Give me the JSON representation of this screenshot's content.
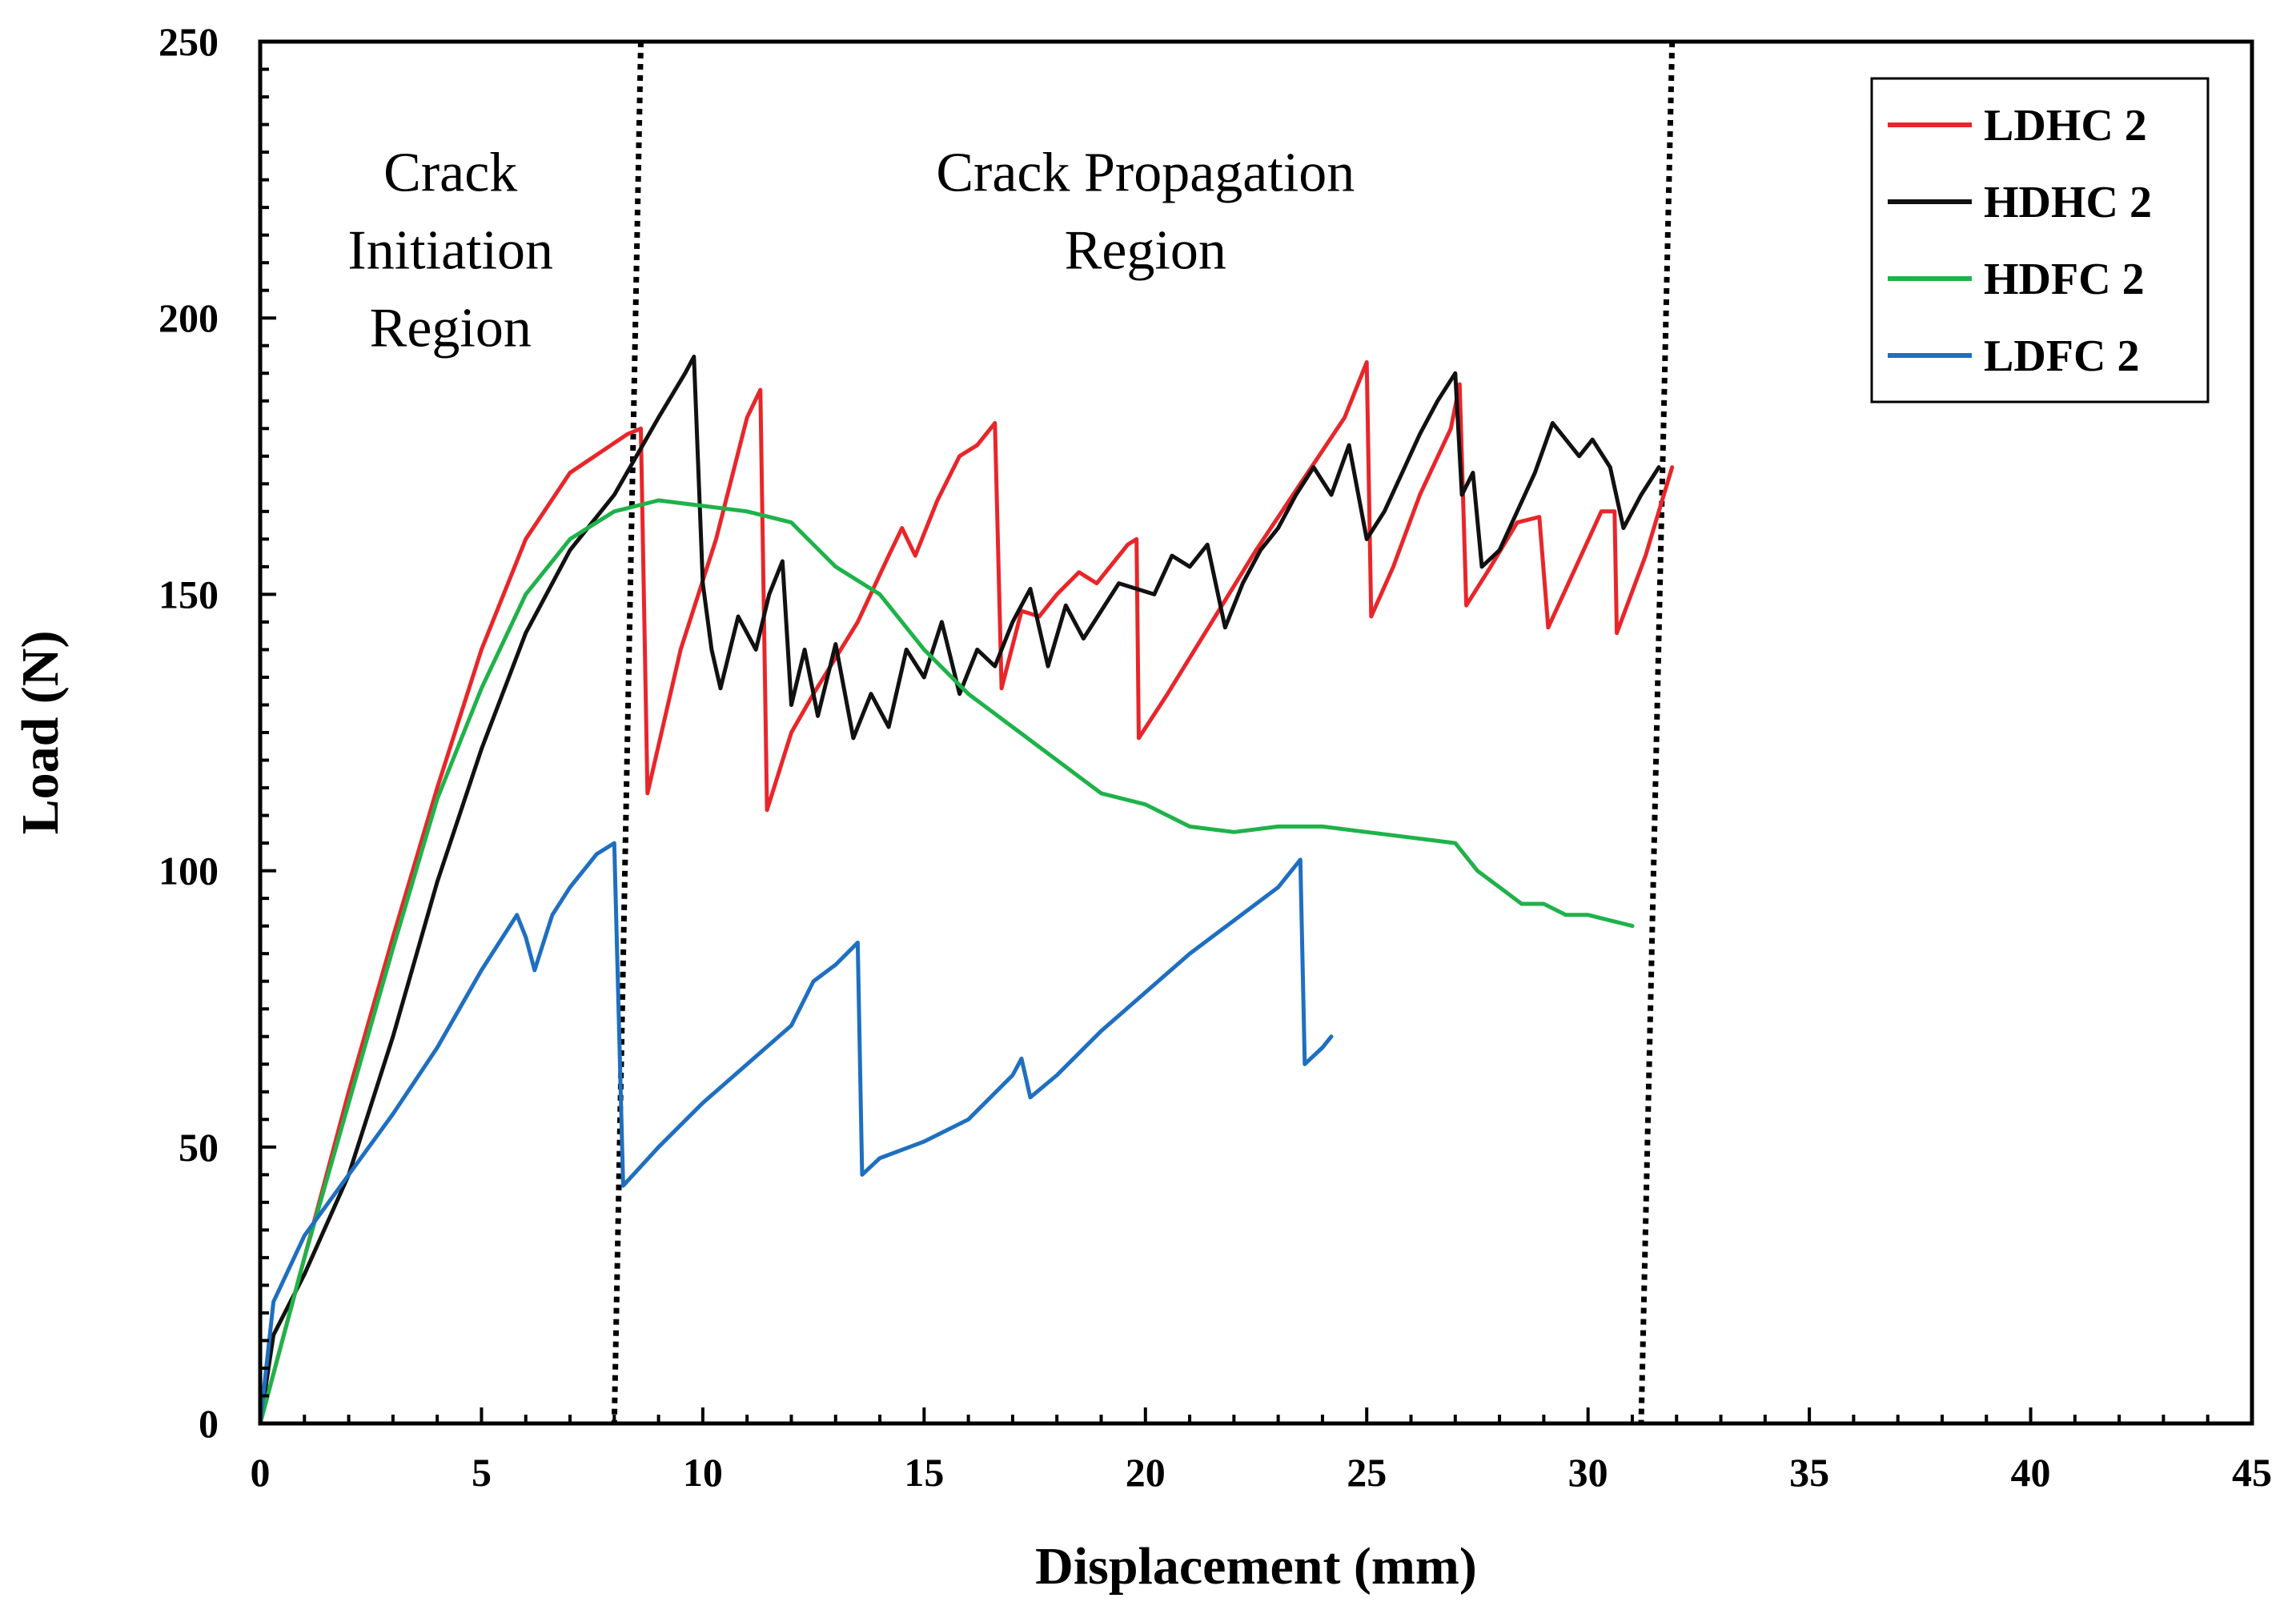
{
  "chart_data": {
    "type": "line",
    "title": "",
    "xlabel": "Displacement (mm)",
    "ylabel": "Load (N)",
    "xlim": [
      0,
      45
    ],
    "ylim": [
      0,
      250
    ],
    "x_ticks": [
      "0",
      "5",
      "10",
      "15",
      "20",
      "25",
      "30",
      "35",
      "40",
      "45"
    ],
    "y_ticks": [
      "0",
      "50",
      "100",
      "150",
      "200",
      "250"
    ],
    "grid": false,
    "legend_position": "top-right",
    "region_boundaries": [
      {
        "name": "crack-initiation-end",
        "top_x": 8.6,
        "bottom_x": 8.0
      },
      {
        "name": "crack-propagation-end",
        "top_x": 31.9,
        "bottom_x": 31.2
      }
    ],
    "region_labels": [
      {
        "name": "crack-initiation",
        "lines": [
          "Crack",
          "Initiation",
          "Region"
        ],
        "x": 4.3,
        "y": 223
      },
      {
        "name": "crack-propagation",
        "lines": [
          "Crack Propagation",
          "Region"
        ],
        "x": 20.0,
        "y": 223
      }
    ],
    "series": [
      {
        "name": "LDHC 2",
        "color": "#e8262a",
        "points": [
          [
            0,
            0
          ],
          [
            1,
            30
          ],
          [
            2,
            60
          ],
          [
            3,
            88
          ],
          [
            4,
            115
          ],
          [
            5,
            140
          ],
          [
            6,
            160
          ],
          [
            7,
            172
          ],
          [
            8.3,
            179
          ],
          [
            8.6,
            180
          ],
          [
            8.75,
            114
          ],
          [
            9.5,
            140
          ],
          [
            10.3,
            160
          ],
          [
            11,
            182
          ],
          [
            11.3,
            187
          ],
          [
            11.45,
            111
          ],
          [
            12,
            125
          ],
          [
            12.5,
            132
          ],
          [
            13.5,
            145
          ],
          [
            14.2,
            157
          ],
          [
            14.5,
            162
          ],
          [
            14.8,
            157
          ],
          [
            15.3,
            167
          ],
          [
            15.8,
            175
          ],
          [
            16.2,
            177
          ],
          [
            16.6,
            181
          ],
          [
            16.75,
            133
          ],
          [
            17.2,
            147
          ],
          [
            17.6,
            146
          ],
          [
            18,
            150
          ],
          [
            18.5,
            154
          ],
          [
            18.9,
            152
          ],
          [
            19.6,
            159
          ],
          [
            19.8,
            160
          ],
          [
            19.85,
            124
          ],
          [
            20.5,
            132
          ],
          [
            21.5,
            145
          ],
          [
            22.5,
            158
          ],
          [
            23.5,
            170
          ],
          [
            24.5,
            182
          ],
          [
            25,
            192
          ],
          [
            25.1,
            146
          ],
          [
            25.6,
            155
          ],
          [
            26.2,
            168
          ],
          [
            26.9,
            180
          ],
          [
            27.1,
            188
          ],
          [
            27.25,
            148
          ],
          [
            27.8,
            155
          ],
          [
            28.4,
            163
          ],
          [
            28.9,
            164
          ],
          [
            29.1,
            144
          ],
          [
            29.9,
            158
          ],
          [
            30.3,
            165
          ],
          [
            30.6,
            165
          ],
          [
            30.65,
            143
          ],
          [
            31.3,
            157
          ],
          [
            31.9,
            173
          ]
        ]
      },
      {
        "name": "HDHC 2",
        "color": "#111111",
        "points": [
          [
            0,
            0
          ],
          [
            0.3,
            16
          ],
          [
            1,
            27
          ],
          [
            2,
            45
          ],
          [
            3,
            70
          ],
          [
            4,
            98
          ],
          [
            5,
            122
          ],
          [
            6,
            143
          ],
          [
            7,
            158
          ],
          [
            8,
            168
          ],
          [
            9,
            182
          ],
          [
            9.6,
            190
          ],
          [
            9.8,
            193
          ],
          [
            10,
            152
          ],
          [
            10.2,
            140
          ],
          [
            10.4,
            133
          ],
          [
            10.8,
            146
          ],
          [
            11.2,
            140
          ],
          [
            11.5,
            150
          ],
          [
            11.8,
            156
          ],
          [
            12,
            130
          ],
          [
            12.3,
            140
          ],
          [
            12.6,
            128
          ],
          [
            13,
            141
          ],
          [
            13.4,
            124
          ],
          [
            13.8,
            132
          ],
          [
            14.2,
            126
          ],
          [
            14.6,
            140
          ],
          [
            15,
            135
          ],
          [
            15.4,
            145
          ],
          [
            15.8,
            132
          ],
          [
            16.2,
            140
          ],
          [
            16.6,
            137
          ],
          [
            17,
            145
          ],
          [
            17.4,
            151
          ],
          [
            17.8,
            137
          ],
          [
            18.2,
            148
          ],
          [
            18.6,
            142
          ],
          [
            19,
            147
          ],
          [
            19.4,
            152
          ],
          [
            19.8,
            151
          ],
          [
            20.2,
            150
          ],
          [
            20.6,
            157
          ],
          [
            21,
            155
          ],
          [
            21.4,
            159
          ],
          [
            21.8,
            144
          ],
          [
            22.2,
            152
          ],
          [
            22.6,
            158
          ],
          [
            23,
            162
          ],
          [
            23.4,
            168
          ],
          [
            23.8,
            173
          ],
          [
            24.2,
            168
          ],
          [
            24.6,
            177
          ],
          [
            25,
            160
          ],
          [
            25.4,
            165
          ],
          [
            25.8,
            172
          ],
          [
            26.2,
            179
          ],
          [
            26.6,
            185
          ],
          [
            27,
            190
          ],
          [
            27.15,
            168
          ],
          [
            27.4,
            172
          ],
          [
            27.6,
            155
          ],
          [
            28,
            158
          ],
          [
            28.4,
            165
          ],
          [
            28.8,
            172
          ],
          [
            29.2,
            181
          ],
          [
            29.5,
            178
          ],
          [
            29.8,
            175
          ],
          [
            30.1,
            178
          ],
          [
            30.5,
            173
          ],
          [
            30.8,
            162
          ],
          [
            31.2,
            168
          ],
          [
            31.6,
            173
          ]
        ]
      },
      {
        "name": "HDFC 2",
        "color": "#1fb24a",
        "points": [
          [
            0,
            0
          ],
          [
            1,
            30
          ],
          [
            2,
            58
          ],
          [
            3,
            86
          ],
          [
            4,
            113
          ],
          [
            5,
            133
          ],
          [
            6,
            150
          ],
          [
            7,
            160
          ],
          [
            8,
            165
          ],
          [
            9,
            167
          ],
          [
            10,
            166
          ],
          [
            11,
            165
          ],
          [
            12,
            163
          ],
          [
            13,
            155
          ],
          [
            14,
            150
          ],
          [
            15,
            140
          ],
          [
            16,
            132
          ],
          [
            17,
            126
          ],
          [
            18,
            120
          ],
          [
            19,
            114
          ],
          [
            20,
            112
          ],
          [
            21,
            108
          ],
          [
            22,
            107
          ],
          [
            23,
            108
          ],
          [
            24,
            108
          ],
          [
            25,
            107
          ],
          [
            26,
            106
          ],
          [
            27,
            105
          ],
          [
            27.5,
            100
          ],
          [
            28,
            97
          ],
          [
            28.5,
            94
          ],
          [
            29,
            94
          ],
          [
            29.5,
            92
          ],
          [
            30,
            92
          ],
          [
            30.5,
            91
          ],
          [
            31,
            90
          ]
        ]
      },
      {
        "name": "LDFC 2",
        "color": "#1f6fc0",
        "points": [
          [
            0,
            0
          ],
          [
            0.3,
            22
          ],
          [
            1,
            34
          ],
          [
            2,
            45
          ],
          [
            3,
            56
          ],
          [
            4,
            68
          ],
          [
            5,
            82
          ],
          [
            5.8,
            92
          ],
          [
            6,
            88
          ],
          [
            6.2,
            82
          ],
          [
            6.6,
            92
          ],
          [
            7,
            97
          ],
          [
            7.6,
            103
          ],
          [
            8,
            105
          ],
          [
            8.2,
            43
          ],
          [
            9,
            50
          ],
          [
            10,
            58
          ],
          [
            11,
            65
          ],
          [
            12,
            72
          ],
          [
            12.5,
            80
          ],
          [
            13,
            83
          ],
          [
            13.5,
            87
          ],
          [
            13.6,
            45
          ],
          [
            14,
            48
          ],
          [
            15,
            51
          ],
          [
            16,
            55
          ],
          [
            17,
            63
          ],
          [
            17.2,
            66
          ],
          [
            17.4,
            59
          ],
          [
            18,
            63
          ],
          [
            19,
            71
          ],
          [
            20,
            78
          ],
          [
            21,
            85
          ],
          [
            22,
            91
          ],
          [
            23,
            97
          ],
          [
            23.5,
            102
          ],
          [
            23.6,
            65
          ],
          [
            24,
            68
          ],
          [
            24.2,
            70
          ]
        ]
      }
    ]
  }
}
